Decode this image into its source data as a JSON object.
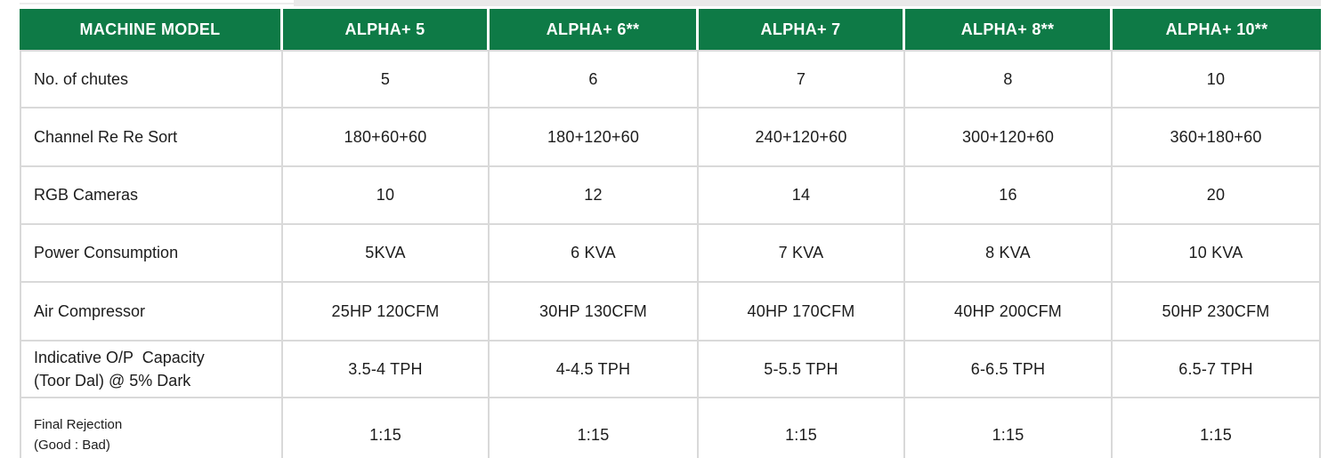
{
  "colors": {
    "header_bg": "#0e7a46",
    "header_text": "#ffffff",
    "body_text": "#1c1c1c",
    "grid_border": "#d9d9d9"
  },
  "chart_data": {
    "type": "table",
    "title": "",
    "columns": [
      "MACHINE MODEL",
      "ALPHA+ 5",
      "ALPHA+ 6**",
      "ALPHA+ 7",
      "ALPHA+ 8**",
      "ALPHA+ 10**"
    ],
    "rows": [
      {
        "label": "No. of chutes",
        "values": [
          "5",
          "6",
          "7",
          "8",
          "10"
        ]
      },
      {
        "label": "Channel Re Re Sort",
        "values": [
          "180+60+60",
          "180+120+60",
          "240+120+60",
          "300+120+60",
          "360+180+60"
        ]
      },
      {
        "label": "RGB Cameras",
        "values": [
          "10",
          "12",
          "14",
          "16",
          "20"
        ]
      },
      {
        "label": "Power Consumption",
        "values": [
          "5KVA",
          "6 KVA",
          "7 KVA",
          "8 KVA",
          "10 KVA"
        ]
      },
      {
        "label": "Air Compressor",
        "values": [
          "25HP 120CFM",
          "30HP 130CFM",
          "40HP 170CFM",
          "40HP 200CFM",
          "50HP 230CFM"
        ]
      },
      {
        "label": "Indicative O/P  Capacity\n(Toor Dal) @ 5% Dark",
        "values": [
          "3.5-4 TPH",
          "4-4.5 TPH",
          "5-5.5 TPH",
          "6-6.5 TPH",
          "6.5-7 TPH"
        ]
      },
      {
        "label": "Final Rejection\n(Good : Bad)",
        "values": [
          "1:15",
          "1:15",
          "1:15",
          "1:15",
          "1:15"
        ]
      }
    ]
  }
}
